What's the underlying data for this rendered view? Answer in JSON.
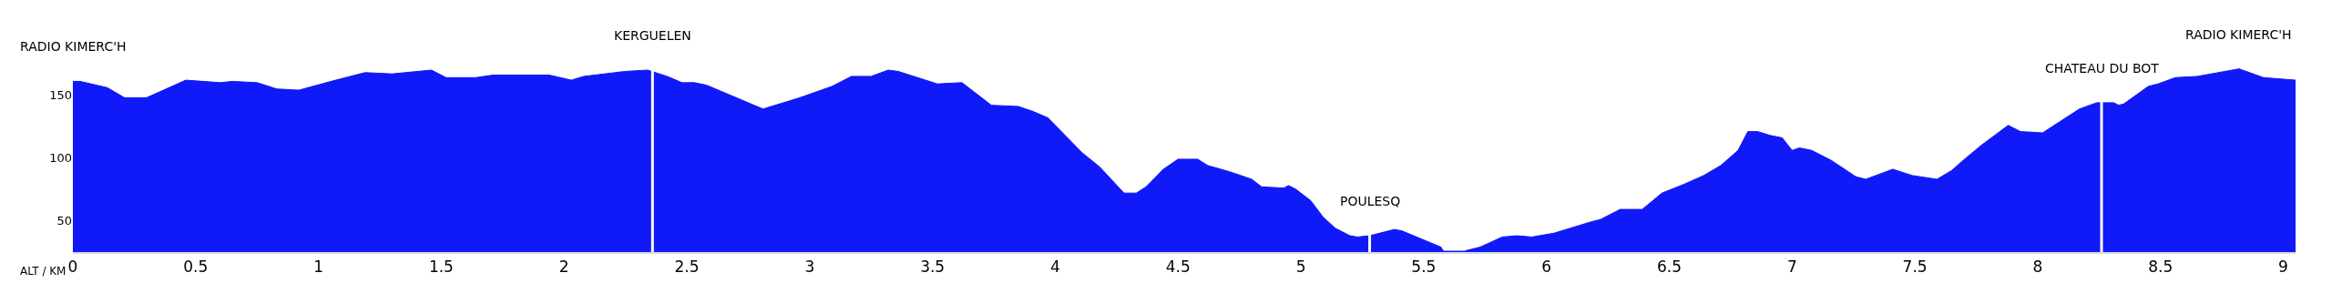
{
  "chart_data": {
    "type": "area",
    "color": "#1019f7",
    "xlabel": "ALT / KM",
    "x": [
      0,
      0.03,
      0.14,
      0.21,
      0.3,
      0.46,
      0.6,
      0.65,
      0.75,
      0.83,
      0.92,
      1.07,
      1.19,
      1.3,
      1.46,
      1.52,
      1.64,
      1.71,
      1.94,
      2.03,
      2.08,
      2.25,
      2.34,
      2.42,
      2.48,
      2.53,
      2.58,
      2.81,
      2.96,
      3.09,
      3.17,
      3.25,
      3.32,
      3.36,
      3.52,
      3.62,
      3.7,
      3.74,
      3.85,
      3.91,
      3.97,
      4.11,
      4.18,
      4.28,
      4.33,
      4.37,
      4.44,
      4.5,
      4.58,
      4.62,
      4.71,
      4.8,
      4.84,
      4.93,
      4.95,
      4.98,
      5.04,
      5.09,
      5.14,
      5.2,
      5.23,
      5.28,
      5.38,
      5.41,
      5.57,
      5.58,
      5.62,
      5.67,
      5.73,
      5.82,
      5.88,
      5.94,
      6.03,
      6.18,
      6.22,
      6.3,
      6.39,
      6.47,
      6.56,
      6.64,
      6.71,
      6.78,
      6.82,
      6.86,
      6.91,
      6.96,
      7.0,
      7.03,
      7.08,
      7.16,
      7.26,
      7.3,
      7.41,
      7.49,
      7.59,
      7.65,
      7.69,
      7.77,
      7.88,
      7.93,
      8.02,
      8.17,
      8.24,
      8.27,
      8.31,
      8.33,
      8.35,
      8.45,
      8.49,
      8.56,
      8.65,
      8.82,
      8.92,
      9.05
    ],
    "values": [
      161,
      161,
      156,
      148,
      148,
      162,
      160,
      161,
      160,
      155,
      154,
      162,
      168,
      167,
      170,
      164,
      164,
      166,
      166,
      162,
      165,
      169,
      170,
      165,
      160,
      160,
      158,
      139,
      148,
      157,
      165,
      165,
      170,
      169,
      159,
      160,
      148,
      142,
      141,
      137,
      132,
      104,
      93,
      72,
      72,
      77,
      91,
      99,
      99,
      94,
      89,
      83,
      77,
      76,
      78,
      75,
      66,
      53,
      44,
      38,
      37,
      38,
      43,
      42,
      29,
      26,
      null,
      26,
      29,
      37,
      38,
      37,
      40,
      49,
      51,
      59,
      59,
      72,
      79,
      86,
      94,
      106,
      121,
      121,
      118,
      116,
      106,
      108,
      106,
      98,
      85,
      83,
      91,
      86,
      83,
      90,
      97,
      110,
      126,
      121,
      120,
      139,
      144,
      144,
      144,
      142,
      143,
      157,
      159,
      164,
      165,
      171,
      164,
      162
    ],
    "xlim": [
      0,
      9.05
    ],
    "ylim": [
      25,
      178
    ],
    "xticks": [
      0,
      0.5,
      1,
      1.5,
      2,
      2.5,
      3,
      3.5,
      4,
      4.5,
      5,
      5.5,
      6,
      6.5,
      7,
      7.5,
      8,
      8.5,
      9
    ],
    "yticks": [
      50,
      100,
      150
    ],
    "ref_lines": [
      {
        "axis": "x",
        "value": 2.36,
        "color": "#ffffff"
      },
      {
        "axis": "x",
        "value": 5.28,
        "color": "#ffffff"
      },
      {
        "axis": "x",
        "value": 8.26,
        "color": "#ffffff"
      }
    ],
    "annotations": [
      {
        "text": "RADIO KIMERC'H",
        "x": 0,
        "y": 161
      },
      {
        "text": "KERGUELEN",
        "x": 2.36,
        "y": 170
      },
      {
        "text": "POULESQ",
        "x": 5.28,
        "y": 38
      },
      {
        "text": "CHATEAU DU BOT",
        "x": 8.26,
        "y": 144
      },
      {
        "text": "RADIO KIMERC'H",
        "x": 8.82,
        "y": 171
      }
    ]
  }
}
